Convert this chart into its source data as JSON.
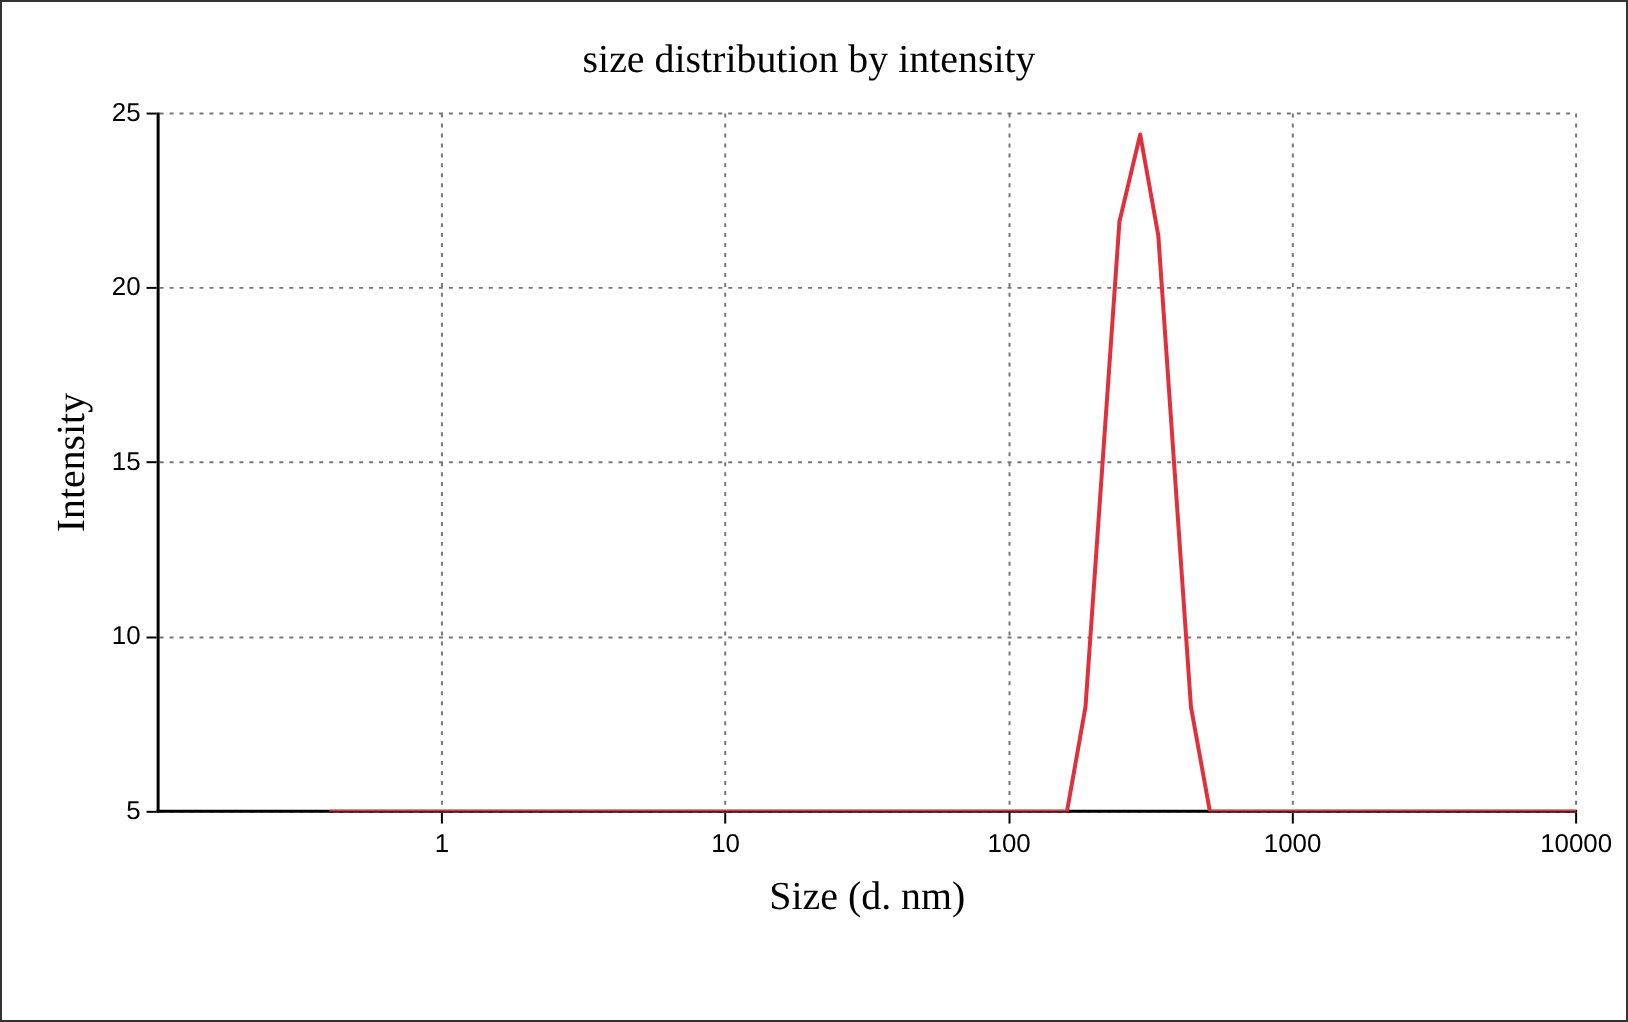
{
  "chart_data": {
    "type": "line",
    "title": "size distribution by intensity",
    "xlabel": "Size (d. nm)",
    "ylabel": "Intensity",
    "x": [
      0.4,
      160,
      186,
      245,
      290,
      336,
      438,
      511,
      10000
    ],
    "series": [
      {
        "color": "#e0303c",
        "values": [
          5,
          5,
          8,
          21.9,
          24.4,
          21.5,
          8,
          5,
          5
        ]
      }
    ],
    "log": "x",
    "xlim": [
      0.1,
      10000
    ],
    "xticks": [
      1,
      10,
      100,
      1000,
      10000
    ],
    "ylim": [
      5,
      25
    ],
    "yticks": [
      5,
      10,
      15,
      20,
      25
    ],
    "grid": true,
    "legend": false,
    "marker": "none",
    "line_style": "solid"
  }
}
